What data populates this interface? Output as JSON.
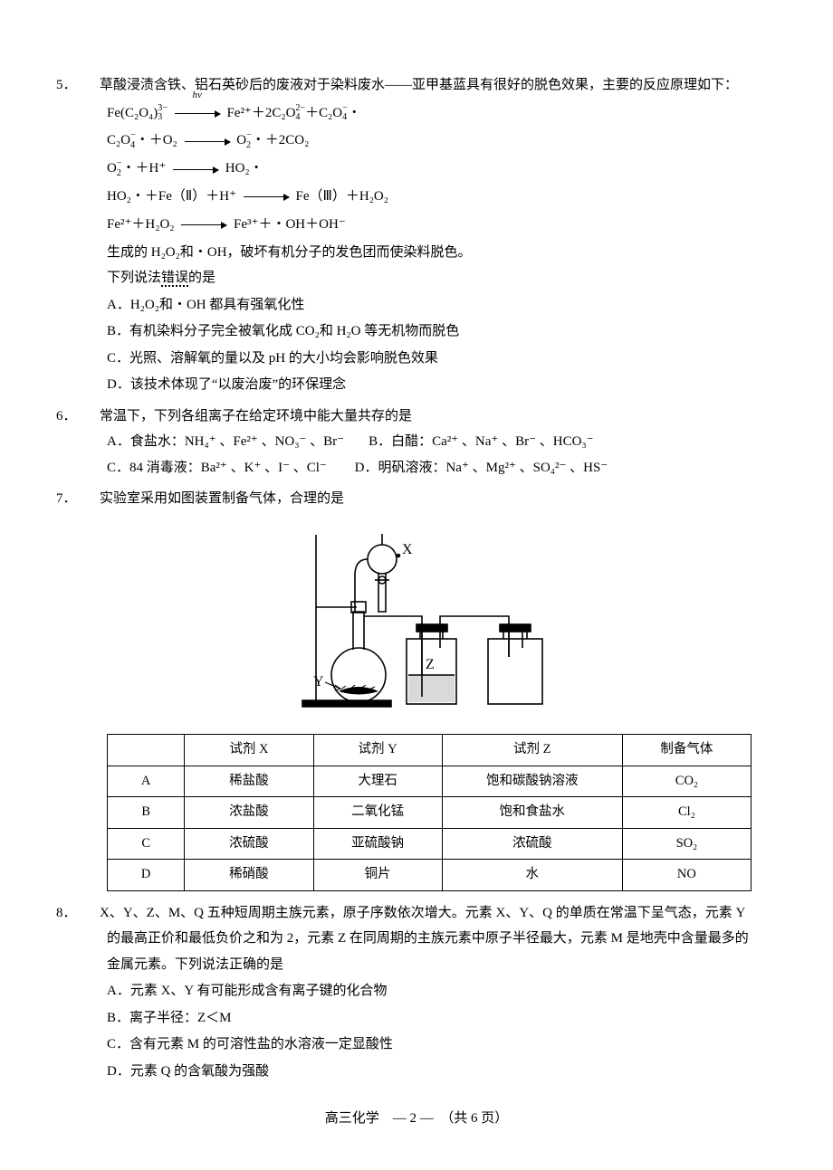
{
  "q5": {
    "num": "5．",
    "intro": "草酸浸渍含铁、铝石英砂后的废液对于染料废水——亚甲基蓝具有很好的脱色效果，主要的反应原理如下：",
    "formulas": {
      "f1_left": "Fe(C₂O₄)",
      "f1_sup": "3−",
      "f1_sub": "3",
      "f1_arrow_label": "hv",
      "f1_right_a": " Fe²⁺＋2C₂O",
      "f1_right_b_sup": "2−",
      "f1_right_b_sub": "4",
      "f1_right_c": "＋C₂O",
      "f1_right_d_sup": "−",
      "f1_right_d_sub": "4",
      "f1_right_e": "・",
      "f2_a": "C₂O",
      "f2_b_sup": "−",
      "f2_b_sub": "4",
      "f2_c": "・＋O₂",
      "f2_d": " O",
      "f2_e_sup": "−",
      "f2_e_sub": "2",
      "f2_f": "・＋2CO₂",
      "f3_a": "O",
      "f3_b_sup": "−",
      "f3_b_sub": "2",
      "f3_c": "・＋H⁺",
      "f3_d": " HO₂・",
      "f4": "HO₂・＋Fe（Ⅱ）＋H⁺",
      "f4_right": " Fe（Ⅲ）＋H₂O₂",
      "f5": "Fe²⁺＋H₂O₂",
      "f5_right": " Fe³⁺＋・OH＋OH⁻"
    },
    "line_after": "生成的 H₂O₂和・OH，破坏有机分子的发色团而使染料脱色。",
    "prompt_prefix": "下列说法",
    "prompt_emph": "错误",
    "prompt_suffix": "的是",
    "opts": {
      "A": "A．H₂O₂和・OH 都具有强氧化性",
      "B": "B．有机染料分子完全被氧化成 CO₂和 H₂O 等无机物而脱色",
      "C": "C．光照、溶解氧的量以及 pH 的大小均会影响脱色效果",
      "D": "D．该技术体现了“以废治废”的环保理念"
    }
  },
  "q6": {
    "num": "6．",
    "intro": "常温下，下列各组离子在给定环境中能大量共存的是",
    "opts": {
      "A_label": "A．食盐水：",
      "A_ions": "NH₄⁺ 、Fe²⁺ 、NO₃⁻ 、Br⁻",
      "B_label": "B．白醋：",
      "B_ions": "Ca²⁺ 、Na⁺ 、Br⁻ 、HCO₃⁻",
      "C_label": "C．84 消毒液：",
      "C_ions": "Ba²⁺ 、K⁺ 、I⁻ 、Cl⁻",
      "D_label": "D．明矾溶液：",
      "D_ions": "Na⁺ 、Mg²⁺ 、SO₄²⁻ 、HS⁻"
    }
  },
  "q7": {
    "num": "7．",
    "intro": "实验室采用如图装置制备气体，合理的是",
    "labels": {
      "X": "X",
      "Y": "Y",
      "Z": "Z"
    },
    "table": {
      "headers": [
        "",
        "试剂 X",
        "试剂 Y",
        "试剂 Z",
        "制备气体"
      ],
      "rows": [
        [
          "A",
          "稀盐酸",
          "大理石",
          "饱和碳酸钠溶液",
          "CO₂"
        ],
        [
          "B",
          "浓盐酸",
          "二氧化锰",
          "饱和食盐水",
          "Cl₂"
        ],
        [
          "C",
          "浓硫酸",
          "亚硫酸钠",
          "浓硫酸",
          "SO₂"
        ],
        [
          "D",
          "稀硝酸",
          "铜片",
          "水",
          "NO"
        ]
      ]
    }
  },
  "q8": {
    "num": "8．",
    "intro": "X、Y、Z、M、Q 五种短周期主族元素，原子序数依次增大。元素 X、Y、Q 的单质在常温下呈气态，元素 Y 的最高正价和最低负价之和为 2，元素 Z 在同周期的主族元素中原子半径最大，元素 M 是地壳中含量最多的金属元素。下列说法正确的是",
    "opts": {
      "A": "A．元素 X、Y 有可能形成含有离子键的化合物",
      "B": "B．离子半径：Z＜M",
      "C": "C．含有元素 M 的可溶性盐的水溶液一定显酸性",
      "D": "D．元素 Q 的含氧酸为强酸"
    }
  },
  "footer": "高三化学　— 2 —　（共 6 页）"
}
